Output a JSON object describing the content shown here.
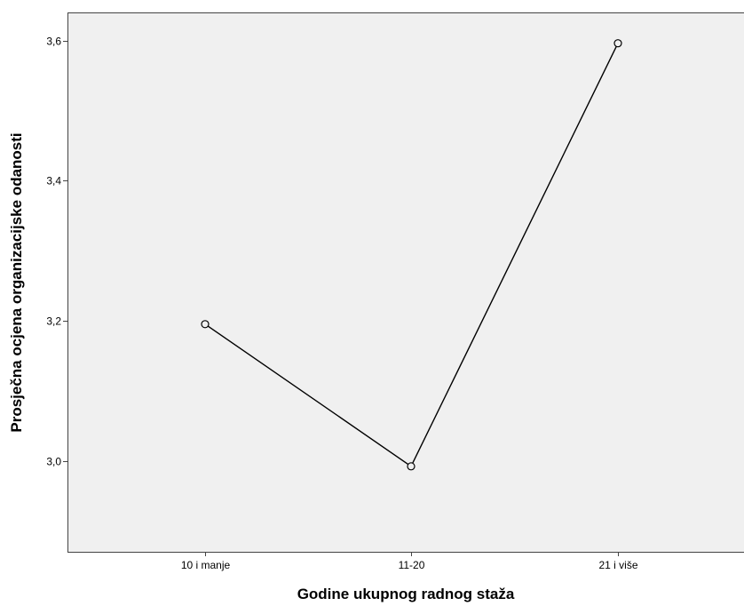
{
  "chart_data": {
    "type": "line",
    "title": "",
    "xlabel": "Godine ukupnog radnog staža",
    "ylabel": "Prosječna ocjena organizacijske odanosti",
    "categories": [
      "10 i manje",
      "11-20",
      "21 i više"
    ],
    "series": [
      {
        "values": [
          3.195,
          2.992,
          3.596
        ]
      }
    ],
    "ylim": [
      2.87,
      3.64
    ],
    "yticks": [
      3.0,
      3.2,
      3.4,
      3.6
    ],
    "ytick_labels": [
      "3,0",
      "3,2",
      "3,4",
      "3,6"
    ],
    "grid": false,
    "legend": "none",
    "colors": {
      "plot_background": "#f0f0f0",
      "line": "#000000",
      "marker_fill": "#f0f0f0"
    },
    "marker": "circle"
  }
}
